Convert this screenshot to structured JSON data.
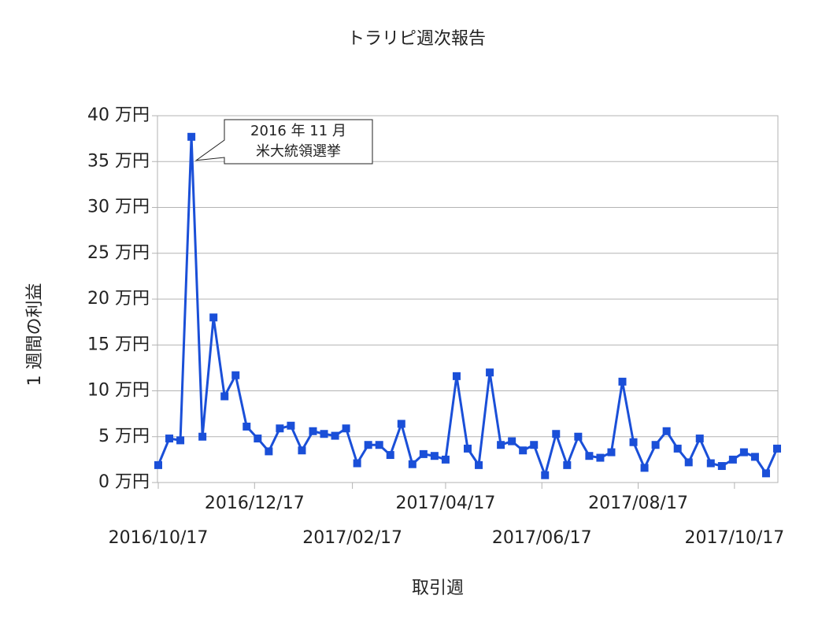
{
  "chart_data": {
    "type": "line",
    "title": "トラリピ週次報告",
    "x_label": "取引週",
    "y_label": "1 週間の利益",
    "annotation": [
      "2016 年 11 月",
      "米大統領選挙"
    ],
    "x": [
      "2016/10/17",
      "2016/10/24",
      "2016/10/31",
      "2016/11/07",
      "2016/11/14",
      "2016/11/21",
      "2016/11/28",
      "2016/12/05",
      "2016/12/12",
      "2016/12/19",
      "2016/12/26",
      "2017/01/02",
      "2017/01/09",
      "2017/01/16",
      "2017/01/23",
      "2017/01/30",
      "2017/02/06",
      "2017/02/13",
      "2017/02/20",
      "2017/02/27",
      "2017/03/06",
      "2017/03/13",
      "2017/03/20",
      "2017/03/27",
      "2017/04/03",
      "2017/04/10",
      "2017/04/17",
      "2017/04/24",
      "2017/05/01",
      "2017/05/08",
      "2017/05/15",
      "2017/05/22",
      "2017/05/29",
      "2017/06/05",
      "2017/06/12",
      "2017/06/19",
      "2017/06/26",
      "2017/07/03",
      "2017/07/10",
      "2017/07/17",
      "2017/07/24",
      "2017/07/31",
      "2017/08/07",
      "2017/08/14",
      "2017/08/21",
      "2017/08/28",
      "2017/09/04",
      "2017/09/11",
      "2017/09/18",
      "2017/09/25",
      "2017/10/02",
      "2017/10/09",
      "2017/10/16",
      "2017/10/23",
      "2017/10/30",
      "2017/11/06",
      "2017/11/13"
    ],
    "series": [
      {
        "name": "利益",
        "color": "#1a4fd8",
        "values": [
          1.9,
          4.8,
          4.6,
          37.7,
          5.0,
          18.0,
          9.4,
          11.7,
          6.1,
          4.8,
          3.4,
          5.9,
          6.2,
          3.5,
          5.6,
          5.3,
          5.1,
          5.9,
          2.1,
          4.1,
          4.1,
          3.0,
          6.4,
          2.0,
          3.1,
          2.9,
          2.5,
          11.6,
          3.7,
          1.9,
          12.0,
          4.1,
          4.5,
          3.5,
          4.1,
          0.8,
          5.3,
          1.9,
          5.0,
          2.9,
          2.7,
          3.3,
          11.0,
          4.4,
          1.6,
          4.1,
          5.6,
          3.7,
          2.2,
          4.8,
          2.1,
          1.8,
          2.5,
          3.3,
          2.8,
          1.0,
          3.7
        ]
      }
    ],
    "xlim": [
      "2016/10/17",
      "2017/11/13"
    ],
    "xticks": [
      "2016/10/17",
      "2016/12/17",
      "2017/02/17",
      "2017/04/17",
      "2017/06/17",
      "2017/08/17",
      "2017/10/17"
    ],
    "ylim": [
      0,
      40
    ],
    "yticks": [
      {
        "value": 0,
        "label": "0 万円"
      },
      {
        "value": 5,
        "label": "5 万円"
      },
      {
        "value": 10,
        "label": "10 万円"
      },
      {
        "value": 15,
        "label": "15 万円"
      },
      {
        "value": 20,
        "label": "20 万円"
      },
      {
        "value": 25,
        "label": "25 万円"
      },
      {
        "value": 30,
        "label": "30 万円"
      },
      {
        "value": 35,
        "label": "35 万円"
      },
      {
        "value": 40,
        "label": "40 万円"
      }
    ],
    "grid": true
  }
}
